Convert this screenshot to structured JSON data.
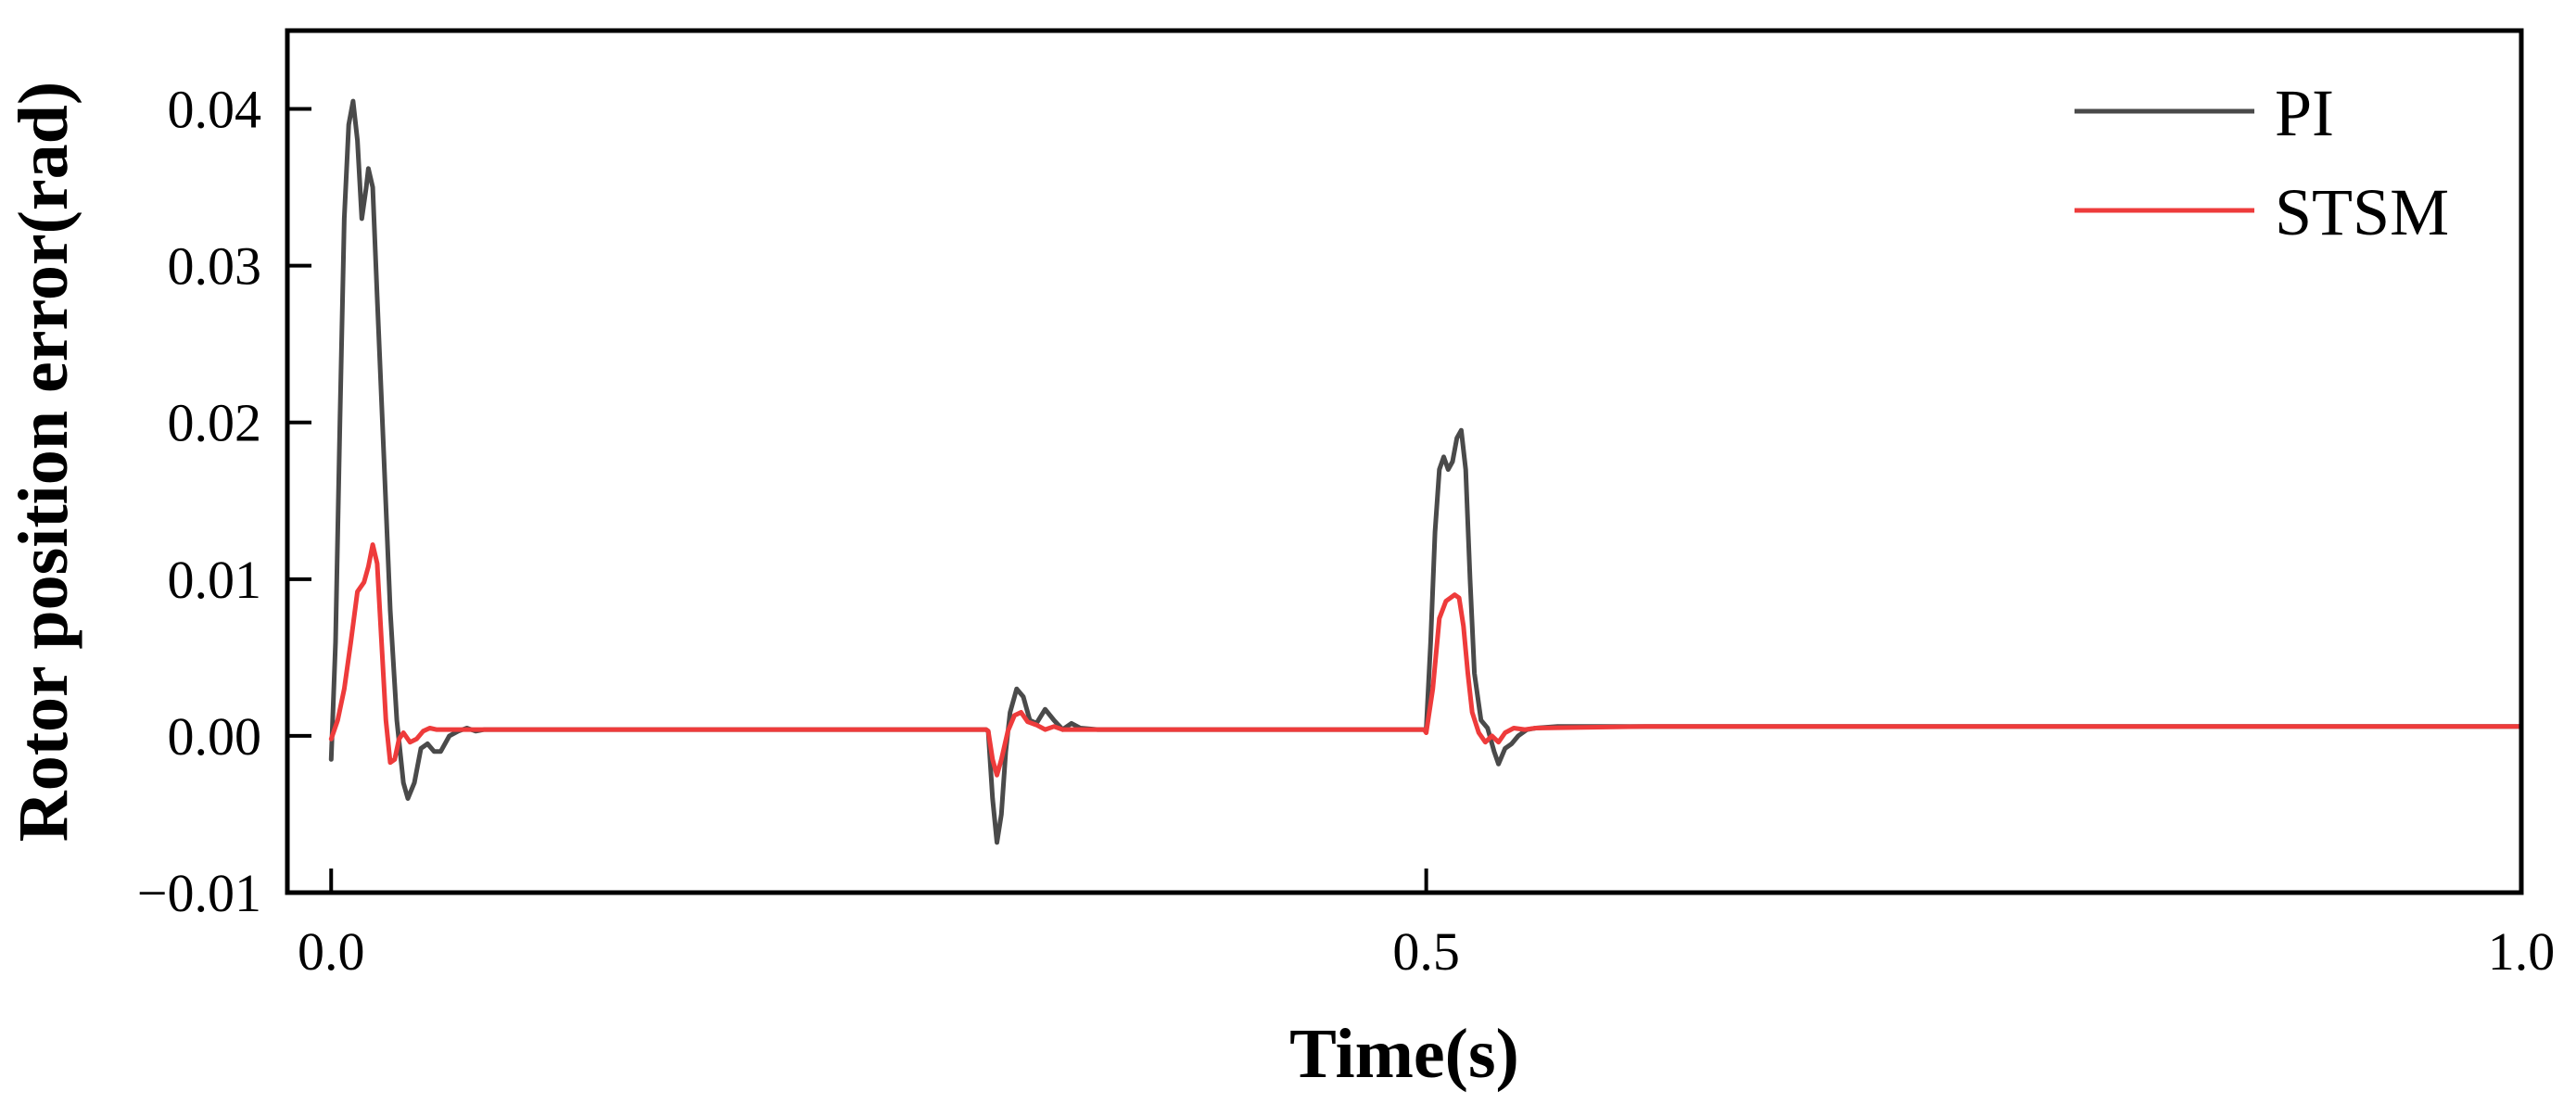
{
  "chart_data": {
    "type": "line",
    "title": "",
    "xlabel": "Time(s)",
    "ylabel": "Rotor position error(rad)",
    "xlim": [
      -0.02,
      1.0
    ],
    "ylim": [
      -0.01,
      0.045
    ],
    "x_ticks": [
      0.0,
      0.5,
      1.0
    ],
    "x_tick_labels": [
      "0.0",
      "0.5",
      "1.0"
    ],
    "y_ticks": [
      -0.01,
      0.0,
      0.01,
      0.02,
      0.03,
      0.04
    ],
    "y_tick_labels": [
      "−0.01",
      "0.00",
      "0.01",
      "0.02",
      "0.03",
      "0.04"
    ],
    "grid": false,
    "legend_position": "top-right",
    "series": [
      {
        "name": "PI",
        "color": "#4a4a4a",
        "points": [
          [
            0.0,
            -0.0015
          ],
          [
            0.002,
            0.006
          ],
          [
            0.004,
            0.02
          ],
          [
            0.006,
            0.033
          ],
          [
            0.008,
            0.039
          ],
          [
            0.01,
            0.0405
          ],
          [
            0.012,
            0.038
          ],
          [
            0.014,
            0.033
          ],
          [
            0.016,
            0.035
          ],
          [
            0.017,
            0.0362
          ],
          [
            0.019,
            0.035
          ],
          [
            0.021,
            0.028
          ],
          [
            0.024,
            0.018
          ],
          [
            0.027,
            0.008
          ],
          [
            0.03,
            0.001
          ],
          [
            0.033,
            -0.003
          ],
          [
            0.035,
            -0.004
          ],
          [
            0.038,
            -0.003
          ],
          [
            0.041,
            -0.0008
          ],
          [
            0.044,
            -0.0005
          ],
          [
            0.047,
            -0.001
          ],
          [
            0.05,
            -0.001
          ],
          [
            0.054,
            0.0
          ],
          [
            0.058,
            0.0003
          ],
          [
            0.062,
            0.0005
          ],
          [
            0.066,
            0.0003
          ],
          [
            0.07,
            0.0004
          ],
          [
            0.08,
            0.0004
          ],
          [
            0.15,
            0.0004
          ],
          [
            0.25,
            0.0004
          ],
          [
            0.299,
            0.0004
          ],
          [
            0.3,
            0.0003
          ],
          [
            0.302,
            -0.004
          ],
          [
            0.304,
            -0.0068
          ],
          [
            0.306,
            -0.005
          ],
          [
            0.308,
            -0.001
          ],
          [
            0.31,
            0.0015
          ],
          [
            0.313,
            0.003
          ],
          [
            0.316,
            0.0025
          ],
          [
            0.319,
            0.001
          ],
          [
            0.322,
            0.0008
          ],
          [
            0.326,
            0.0017
          ],
          [
            0.33,
            0.001
          ],
          [
            0.334,
            0.0004
          ],
          [
            0.338,
            0.0008
          ],
          [
            0.342,
            0.0005
          ],
          [
            0.35,
            0.0004
          ],
          [
            0.4,
            0.0004
          ],
          [
            0.45,
            0.0004
          ],
          [
            0.499,
            0.0004
          ],
          [
            0.5,
            0.0004
          ],
          [
            0.502,
            0.006
          ],
          [
            0.504,
            0.013
          ],
          [
            0.506,
            0.017
          ],
          [
            0.508,
            0.0178
          ],
          [
            0.51,
            0.017
          ],
          [
            0.512,
            0.0175
          ],
          [
            0.514,
            0.019
          ],
          [
            0.516,
            0.0195
          ],
          [
            0.518,
            0.017
          ],
          [
            0.52,
            0.01
          ],
          [
            0.522,
            0.004
          ],
          [
            0.525,
            0.001
          ],
          [
            0.528,
            0.0005
          ],
          [
            0.531,
            -0.001
          ],
          [
            0.533,
            -0.0018
          ],
          [
            0.536,
            -0.0008
          ],
          [
            0.539,
            -0.0005
          ],
          [
            0.542,
            0.0
          ],
          [
            0.546,
            0.0004
          ],
          [
            0.55,
            0.0005
          ],
          [
            0.56,
            0.0006
          ],
          [
            0.6,
            0.0006
          ],
          [
            0.7,
            0.0006
          ],
          [
            0.8,
            0.0006
          ],
          [
            0.9,
            0.0006
          ],
          [
            1.0,
            0.0006
          ]
        ]
      },
      {
        "name": "STSM",
        "color": "#ee3b3b",
        "points": [
          [
            0.0,
            -0.0002
          ],
          [
            0.003,
            0.001
          ],
          [
            0.006,
            0.003
          ],
          [
            0.009,
            0.006
          ],
          [
            0.012,
            0.0092
          ],
          [
            0.015,
            0.0098
          ],
          [
            0.017,
            0.0108
          ],
          [
            0.019,
            0.0122
          ],
          [
            0.021,
            0.011
          ],
          [
            0.023,
            0.006
          ],
          [
            0.025,
            0.001
          ],
          [
            0.027,
            -0.0017
          ],
          [
            0.029,
            -0.0015
          ],
          [
            0.031,
            -0.0002
          ],
          [
            0.033,
            0.0002
          ],
          [
            0.036,
            -0.0004
          ],
          [
            0.039,
            -0.0002
          ],
          [
            0.042,
            0.0003
          ],
          [
            0.045,
            0.0005
          ],
          [
            0.048,
            0.0004
          ],
          [
            0.055,
            0.0004
          ],
          [
            0.1,
            0.0004
          ],
          [
            0.2,
            0.0004
          ],
          [
            0.299,
            0.0004
          ],
          [
            0.3,
            0.0003
          ],
          [
            0.302,
            -0.0015
          ],
          [
            0.304,
            -0.0025
          ],
          [
            0.306,
            -0.0015
          ],
          [
            0.309,
            0.0003
          ],
          [
            0.312,
            0.0013
          ],
          [
            0.315,
            0.0015
          ],
          [
            0.318,
            0.0009
          ],
          [
            0.322,
            0.0007
          ],
          [
            0.326,
            0.0004
          ],
          [
            0.33,
            0.0006
          ],
          [
            0.334,
            0.0004
          ],
          [
            0.34,
            0.0004
          ],
          [
            0.4,
            0.0004
          ],
          [
            0.499,
            0.0004
          ],
          [
            0.5,
            0.0002
          ],
          [
            0.503,
            0.003
          ],
          [
            0.506,
            0.0075
          ],
          [
            0.509,
            0.0086
          ],
          [
            0.511,
            0.0088
          ],
          [
            0.513,
            0.009
          ],
          [
            0.515,
            0.0088
          ],
          [
            0.517,
            0.007
          ],
          [
            0.519,
            0.004
          ],
          [
            0.521,
            0.0015
          ],
          [
            0.524,
            0.0002
          ],
          [
            0.527,
            -0.0004
          ],
          [
            0.53,
            0.0
          ],
          [
            0.533,
            -0.0004
          ],
          [
            0.536,
            0.0002
          ],
          [
            0.54,
            0.0005
          ],
          [
            0.545,
            0.0004
          ],
          [
            0.55,
            0.0005
          ],
          [
            0.6,
            0.0006
          ],
          [
            0.7,
            0.0006
          ],
          [
            0.8,
            0.0006
          ],
          [
            0.9,
            0.0006
          ],
          [
            1.0,
            0.0006
          ]
        ]
      }
    ]
  }
}
